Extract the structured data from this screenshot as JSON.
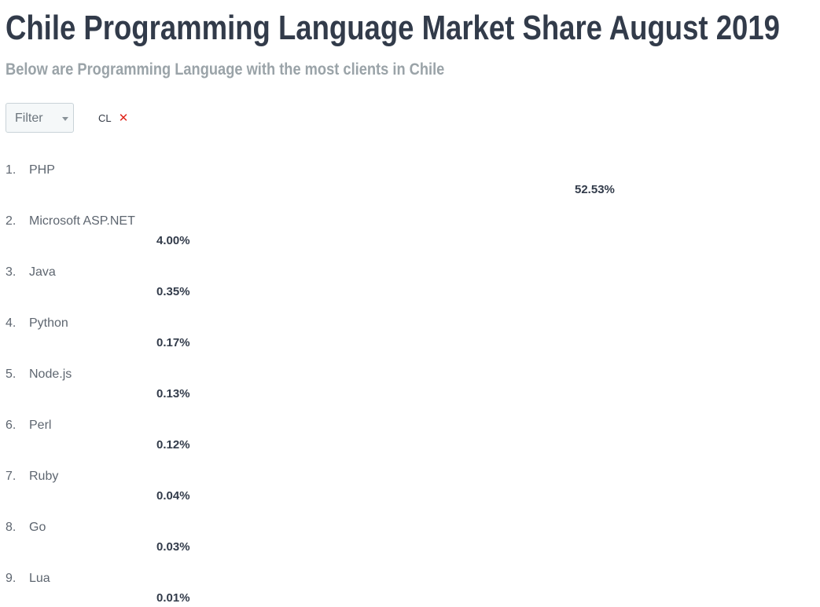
{
  "header": {
    "title": "Chile Programming Language Market Share August 2019",
    "subtitle": "Below are Programming Language with the most clients in Chile"
  },
  "filter": {
    "select_label": "Filter",
    "active_tag": "CL",
    "remove_icon": "close-icon"
  },
  "colors": {
    "bar_start": "#e22b86",
    "bar_end": "#33a4ef"
  },
  "chart_data": {
    "type": "bar",
    "orientation": "horizontal",
    "categories": [
      "PHP",
      "Microsoft ASP.NET",
      "Java",
      "Python",
      "Node.js",
      "Perl",
      "Ruby",
      "Go",
      "Lua"
    ],
    "ranks": [
      "1.",
      "2.",
      "3.",
      "4.",
      "5.",
      "6.",
      "7.",
      "8.",
      "9."
    ],
    "values": [
      52.53,
      4.0,
      0.35,
      0.17,
      0.13,
      0.12,
      0.04,
      0.03,
      0.01
    ],
    "value_labels": [
      "52.53%",
      "4.00%",
      "0.35%",
      "0.17%",
      "0.13%",
      "0.12%",
      "0.04%",
      "0.03%",
      "0.01%"
    ],
    "unit": "%",
    "title": "Chile Programming Language Market Share August 2019",
    "xlabel": "",
    "ylabel": "",
    "grid": false,
    "legend": "none"
  }
}
